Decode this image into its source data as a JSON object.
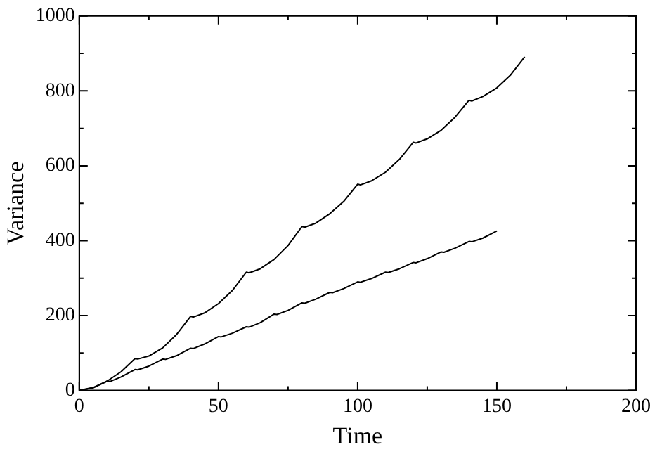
{
  "chart_data": {
    "type": "line",
    "xlabel": "Time",
    "ylabel": "Variance",
    "xlim": [
      0,
      200
    ],
    "ylim": [
      0,
      1000
    ],
    "xticks": [
      0,
      {
        "value": 25,
        "label": null
      },
      50,
      {
        "value": 75,
        "label": null
      },
      100,
      {
        "value": 125,
        "label": null
      },
      150,
      {
        "value": 175,
        "label": null
      },
      200
    ],
    "yticks": [
      0,
      {
        "value": 100,
        "label": null
      },
      200,
      {
        "value": 300,
        "label": null
      },
      400,
      {
        "value": 500,
        "label": null
      },
      600,
      {
        "value": 700,
        "label": null
      },
      800,
      {
        "value": 900,
        "label": null
      },
      1000
    ],
    "grid": false,
    "legend": false,
    "marker": "none",
    "line_style": "solid",
    "series": [
      {
        "color": "#000000",
        "x": [
          0,
          5,
          10,
          15,
          20,
          21,
          25,
          30,
          35,
          40,
          41,
          45,
          50,
          55,
          60,
          61,
          65,
          70,
          75,
          80,
          81,
          85,
          90,
          95,
          100,
          101,
          105,
          110,
          115,
          120,
          121,
          125,
          130,
          135,
          140,
          141,
          145,
          150,
          155,
          160
        ],
        "values": [
          0,
          8,
          25,
          50,
          85,
          84,
          92,
          114,
          150,
          198,
          196,
          207,
          232,
          267,
          316,
          314,
          325,
          350,
          387,
          438,
          436,
          447,
          472,
          505,
          551,
          549,
          560,
          583,
          617,
          663,
          661,
          672,
          695,
          730,
          775,
          773,
          785,
          808,
          843,
          891
        ]
      },
      {
        "color": "#000000",
        "x": [
          0,
          5,
          10,
          11,
          15,
          20,
          21,
          25,
          30,
          31,
          35,
          40,
          41,
          45,
          50,
          51,
          55,
          60,
          61,
          65,
          70,
          71,
          75,
          80,
          81,
          85,
          90,
          91,
          95,
          100,
          101,
          105,
          110,
          111,
          115,
          120,
          121,
          125,
          130,
          131,
          135,
          140,
          141,
          145,
          150
        ],
        "values": [
          0,
          7,
          25,
          24,
          36,
          56,
          55,
          65,
          84,
          83,
          93,
          113,
          112,
          124,
          144,
          143,
          153,
          170,
          169,
          181,
          204,
          203,
          214,
          234,
          233,
          244,
          262,
          261,
          272,
          290,
          289,
          299,
          316,
          315,
          325,
          342,
          341,
          352,
          370,
          369,
          380,
          398,
          397,
          407,
          426
        ]
      }
    ]
  }
}
